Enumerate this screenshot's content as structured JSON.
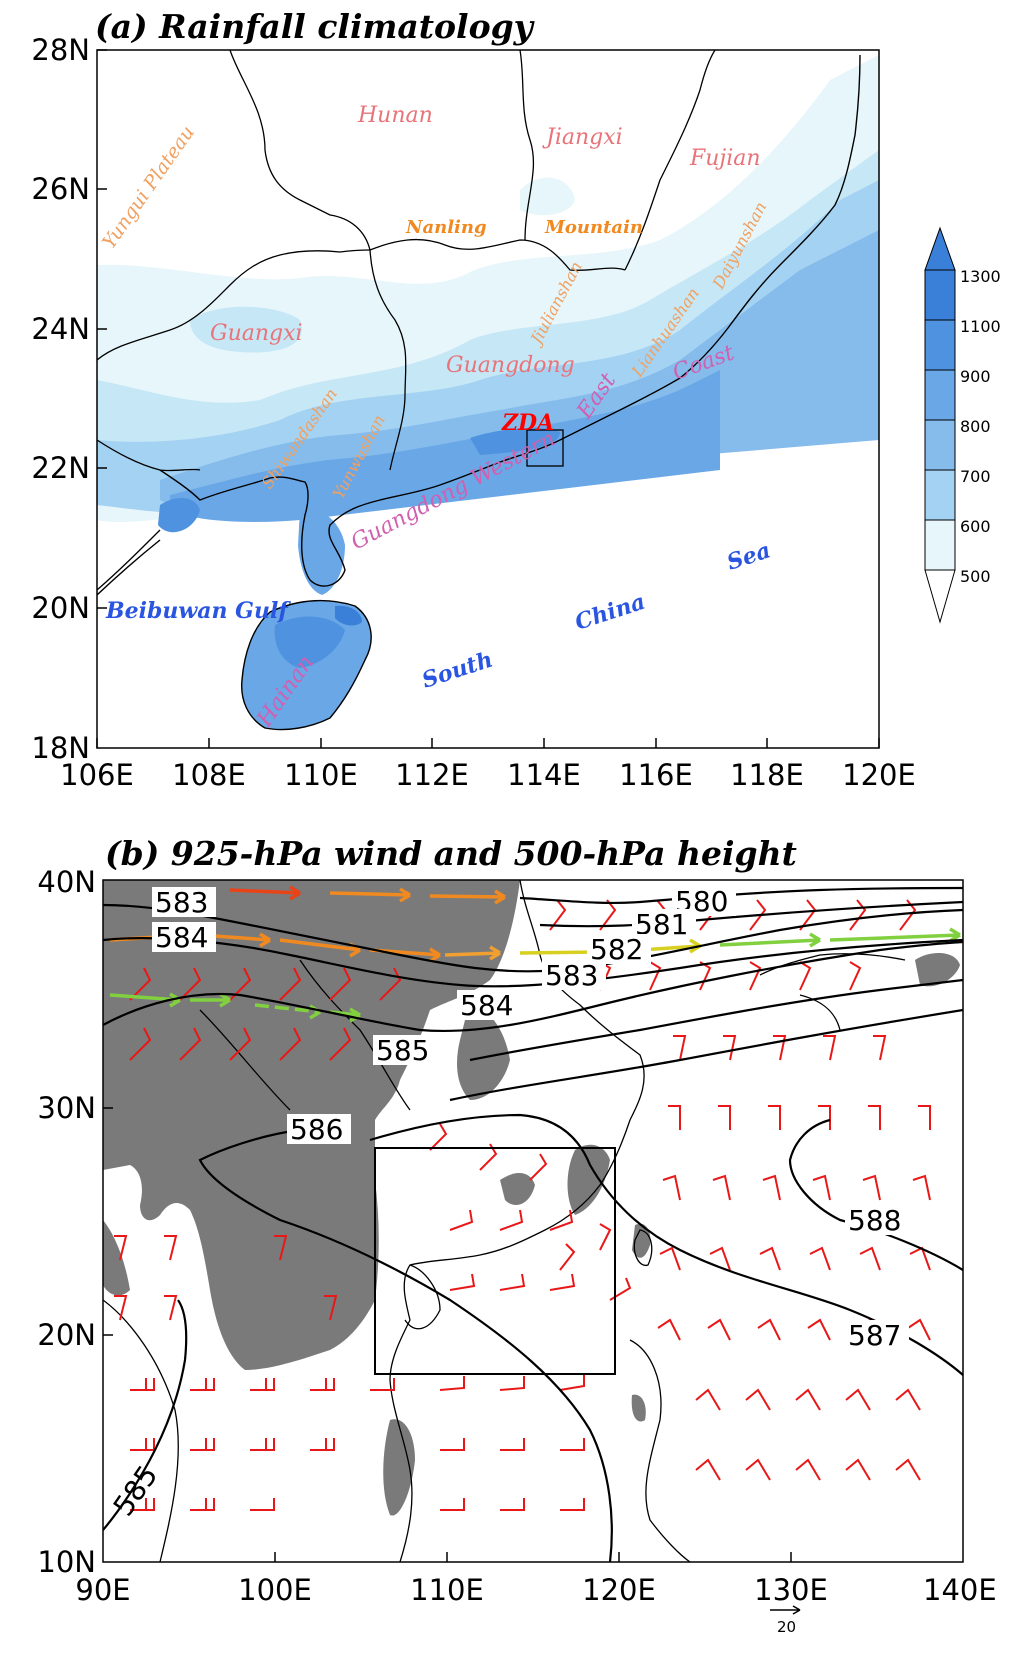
{
  "panel_a": {
    "title": "(a) Rainfall climatology",
    "lat_ticks": [
      "28N",
      "26N",
      "24N",
      "22N",
      "20N",
      "18N"
    ],
    "lon_ticks": [
      "106E",
      "108E",
      "110E",
      "112E",
      "114E",
      "116E",
      "118E",
      "120E"
    ],
    "colorbar": {
      "levels": [
        "1300",
        "1100",
        "900",
        "800",
        "700",
        "600",
        "500"
      ],
      "colors": [
        "#3a7fd8",
        "#4f93e0",
        "#6aa7e6",
        "#85bcec",
        "#a4d2f2",
        "#c6e7f6",
        "#e6f6fb"
      ]
    },
    "labels": {
      "yungui": "Yungui Plateau",
      "hunan": "Hunan",
      "jiangxi": "Jiangxi",
      "fujian": "Fujian",
      "nanling": "Nanling",
      "mountain": "Mountain",
      "jiulianshan": "Jiulianshan",
      "daiyunshan": "Daiyunshan",
      "lianhuashan": "Lianhuashan",
      "guangxi": "Guangxi",
      "guangdong": "Guangdong",
      "shiwandashan": "Shiwandashan",
      "yunwushan": "Yunwushan",
      "coast": "Coast",
      "east": "East",
      "zda": "ZDA",
      "western": "Guangdong Western",
      "beibuwan": "Beibuwan Gulf",
      "hainan": "Hainan",
      "south": "South",
      "china": "China",
      "sea": "Sea"
    }
  },
  "panel_b": {
    "title": "(b) 925-hPa wind and 500-hPa height",
    "lat_ticks": [
      "40N",
      "30N",
      "20N",
      "10N"
    ],
    "lon_ticks": [
      "90E",
      "100E",
      "110E",
      "120E",
      "130E",
      "140E"
    ],
    "contour_labels": [
      "583",
      "584",
      "580",
      "581",
      "582",
      "583",
      "584",
      "585",
      "586",
      "588",
      "587",
      "585"
    ],
    "reference_vector": "20",
    "colors": {
      "terrain": "#7a7a7a",
      "wind_barb": "#e81818",
      "jet_orange": "#f08a20",
      "jet_yellow": "#d8d020",
      "jet_green": "#80d040"
    }
  }
}
